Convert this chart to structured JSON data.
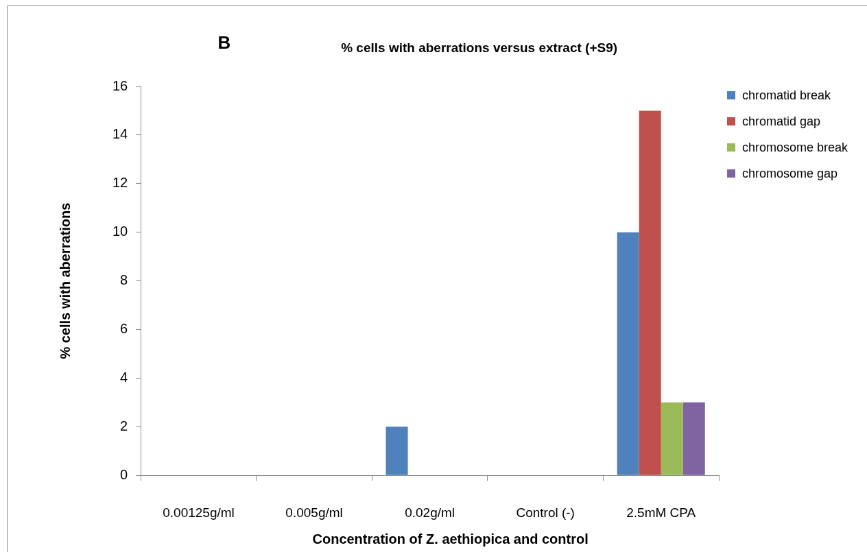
{
  "chart_data": {
    "type": "bar",
    "title": "% cells with aberrations versus extract (+S9)",
    "annotations": [
      "B"
    ],
    "xlabel": "Concentration of Z. aethiopica and control",
    "ylabel": "% cells with aberrations",
    "categories": [
      "0.00125g/ml",
      "0.005g/ml",
      "0.02g/ml",
      "Control (-)",
      "2.5mM CPA"
    ],
    "series": [
      {
        "name": "chromatid break",
        "color": "#4f81bd",
        "values": [
          0,
          0,
          2,
          0,
          10
        ]
      },
      {
        "name": "chromatid gap",
        "color": "#c0504d",
        "values": [
          0,
          0,
          0,
          0,
          15
        ]
      },
      {
        "name": "chromosome break",
        "color": "#9bbb59",
        "values": [
          0,
          0,
          0,
          0,
          3
        ]
      },
      {
        "name": "chromosome gap",
        "color": "#8064a2",
        "values": [
          0,
          0,
          0,
          0,
          3
        ]
      }
    ],
    "ylim": [
      0,
      16
    ],
    "yticks": [
      0,
      2,
      4,
      6,
      8,
      10,
      12,
      14,
      16
    ],
    "grid": false,
    "legend": "top right"
  }
}
